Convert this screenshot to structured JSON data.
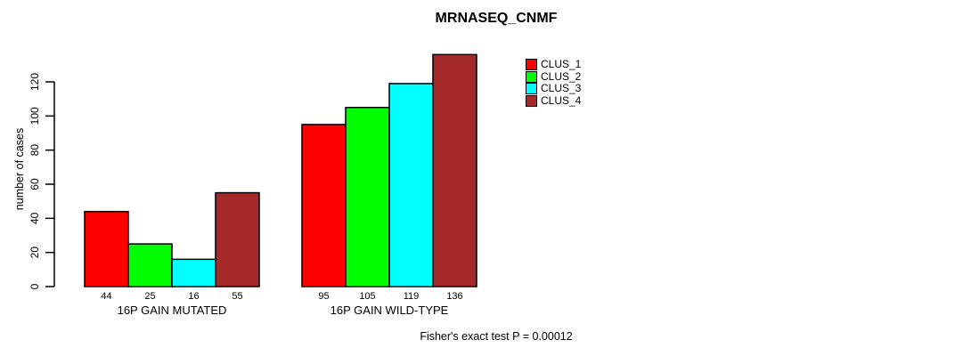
{
  "title": "MRNASEQ_CNMF",
  "footer": "Fisher's exact test P = 0.00012",
  "chart_data": {
    "type": "bar",
    "title": "MRNASEQ_CNMF",
    "xlabel": "",
    "ylabel": "number of cases",
    "ylim": [
      0,
      120
    ],
    "yticks": [
      0,
      20,
      40,
      60,
      80,
      100,
      120
    ],
    "grid": false,
    "legend_position": "top-right",
    "categories": [
      "16P GAIN MUTATED",
      "16P GAIN WILD-TYPE"
    ],
    "series": [
      {
        "name": "CLUS_1",
        "color": "#ff0000",
        "values": [
          44,
          95
        ]
      },
      {
        "name": "CLUS_2",
        "color": "#00ff00",
        "values": [
          25,
          105
        ]
      },
      {
        "name": "CLUS_3",
        "color": "#00ffff",
        "values": [
          16,
          119
        ]
      },
      {
        "name": "CLUS_4",
        "color": "#a52a2a",
        "values": [
          55,
          136
        ]
      }
    ],
    "annotation": "Fisher's exact test P = 0.00012"
  }
}
